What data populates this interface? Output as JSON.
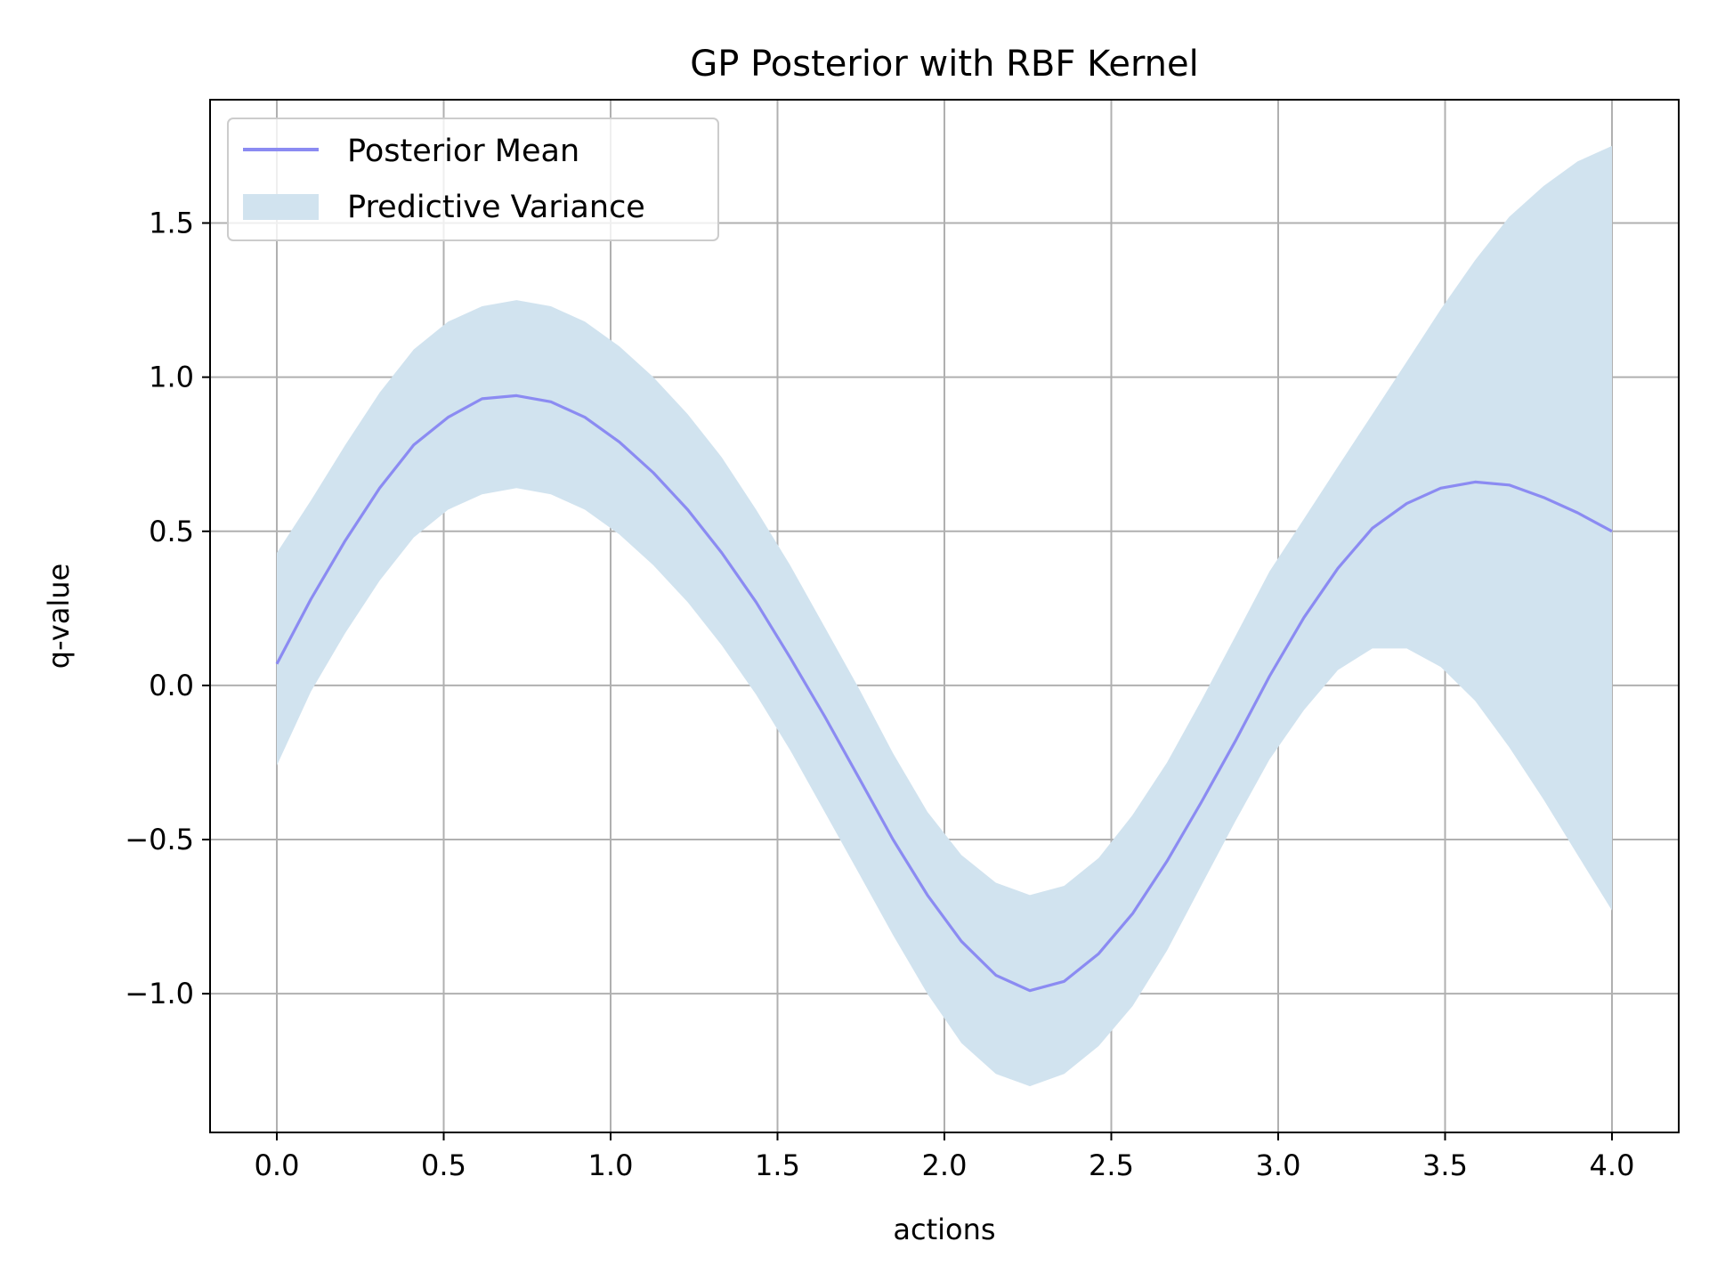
{
  "chart_data": {
    "type": "line",
    "title": "GP Posterior with RBF Kernel",
    "xlabel": "actions",
    "ylabel": "q-value",
    "xlim": [
      -0.2,
      4.2
    ],
    "ylim": [
      -1.45,
      1.9
    ],
    "xticks": [
      0.0,
      0.5,
      1.0,
      1.5,
      2.0,
      2.5,
      3.0,
      3.5,
      4.0
    ],
    "xtick_labels": [
      "0.0",
      "0.5",
      "1.0",
      "1.5",
      "2.0",
      "2.5",
      "3.0",
      "3.5",
      "4.0"
    ],
    "yticks": [
      -1.0,
      -0.5,
      0.0,
      0.5,
      1.0,
      1.5
    ],
    "ytick_labels": [
      "−1.0",
      "−0.5",
      "0.0",
      "0.5",
      "1.0",
      "1.5"
    ],
    "grid": true,
    "legend_position": "top-left",
    "x": [
      0.0,
      0.102,
      0.205,
      0.308,
      0.41,
      0.513,
      0.615,
      0.718,
      0.821,
      0.923,
      1.026,
      1.128,
      1.231,
      1.333,
      1.436,
      1.538,
      1.641,
      1.744,
      1.846,
      1.949,
      2.051,
      2.154,
      2.256,
      2.359,
      2.462,
      2.564,
      2.667,
      2.769,
      2.872,
      2.974,
      3.077,
      3.179,
      3.282,
      3.385,
      3.487,
      3.59,
      3.692,
      3.795,
      3.897,
      4.0
    ],
    "series": [
      {
        "name": "Posterior Mean",
        "color": "#8b8bf2",
        "values": [
          0.07,
          0.28,
          0.47,
          0.64,
          0.78,
          0.87,
          0.93,
          0.94,
          0.92,
          0.87,
          0.79,
          0.69,
          0.57,
          0.43,
          0.27,
          0.09,
          -0.1,
          -0.3,
          -0.5,
          -0.68,
          -0.83,
          -0.94,
          -0.99,
          -0.96,
          -0.87,
          -0.74,
          -0.57,
          -0.38,
          -0.18,
          0.03,
          0.22,
          0.38,
          0.51,
          0.59,
          0.64,
          0.66,
          0.65,
          0.61,
          0.56,
          0.5
        ]
      },
      {
        "name": "Predictive Variance",
        "color": "#d1e3ef",
        "lower": [
          -0.26,
          -0.02,
          0.17,
          0.34,
          0.48,
          0.57,
          0.62,
          0.64,
          0.62,
          0.57,
          0.49,
          0.39,
          0.27,
          0.13,
          -0.03,
          -0.21,
          -0.41,
          -0.61,
          -0.81,
          -1.0,
          -1.16,
          -1.26,
          -1.3,
          -1.26,
          -1.17,
          -1.04,
          -0.86,
          -0.65,
          -0.44,
          -0.24,
          -0.08,
          0.05,
          0.12,
          0.12,
          0.06,
          -0.05,
          -0.2,
          -0.37,
          -0.55,
          -0.73
        ],
        "upper": [
          0.43,
          0.6,
          0.78,
          0.95,
          1.09,
          1.18,
          1.23,
          1.25,
          1.23,
          1.18,
          1.1,
          1.0,
          0.88,
          0.74,
          0.57,
          0.39,
          0.19,
          -0.01,
          -0.22,
          -0.41,
          -0.55,
          -0.64,
          -0.68,
          -0.65,
          -0.56,
          -0.42,
          -0.25,
          -0.05,
          0.16,
          0.37,
          0.54,
          0.71,
          0.88,
          1.05,
          1.22,
          1.38,
          1.52,
          1.62,
          1.7,
          1.75
        ]
      }
    ]
  }
}
